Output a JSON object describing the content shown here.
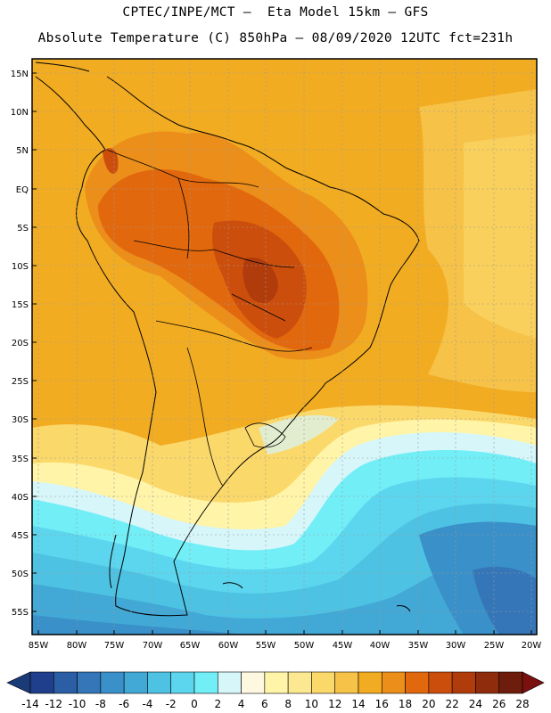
{
  "title_line1": "CPTEC/INPE/MCT –  Eta Model 15km – GFS",
  "title_line2": "Absolute Temperature (C) 850hPa – 08/09/2020 12UTC fct=231h",
  "latitude_labels": [
    "15N",
    "10N",
    "5N",
    "EQ",
    "5S",
    "10S",
    "15S",
    "20S",
    "25S",
    "30S",
    "35S",
    "40S",
    "45S",
    "50S",
    "55S"
  ],
  "longitude_labels": [
    "85W",
    "80W",
    "75W",
    "70W",
    "65W",
    "60W",
    "55W",
    "50W",
    "45W",
    "40W",
    "35W",
    "30W",
    "25W",
    "20W"
  ],
  "colorbar": {
    "ticks": [
      "-14",
      "-12",
      "-10",
      "-8",
      "-6",
      "-4",
      "-2",
      "0",
      "2",
      "4",
      "6",
      "8",
      "10",
      "12",
      "14",
      "16",
      "18",
      "20",
      "22",
      "24",
      "26",
      "28"
    ],
    "colors": [
      "#1f3e8c",
      "#2c5ea5",
      "#3476b8",
      "#3a90c8",
      "#42a8d6",
      "#4ec2e3",
      "#5cd6ee",
      "#72eef7",
      "#d6f6fa",
      "#fff8e0",
      "#fff4a8",
      "#fde892",
      "#fbd86a",
      "#f6c248",
      "#f2ac22",
      "#ec8e1a",
      "#e2680e",
      "#cc4e0c",
      "#b03c0c",
      "#8e2c0c",
      "#6e1c0c"
    ],
    "under_color": "#1a3a78",
    "over_color": "#7a1010"
  },
  "colors": {
    "background": "#ffffff",
    "grid_line": "#9a9a9a",
    "coastline": "#000000"
  }
}
